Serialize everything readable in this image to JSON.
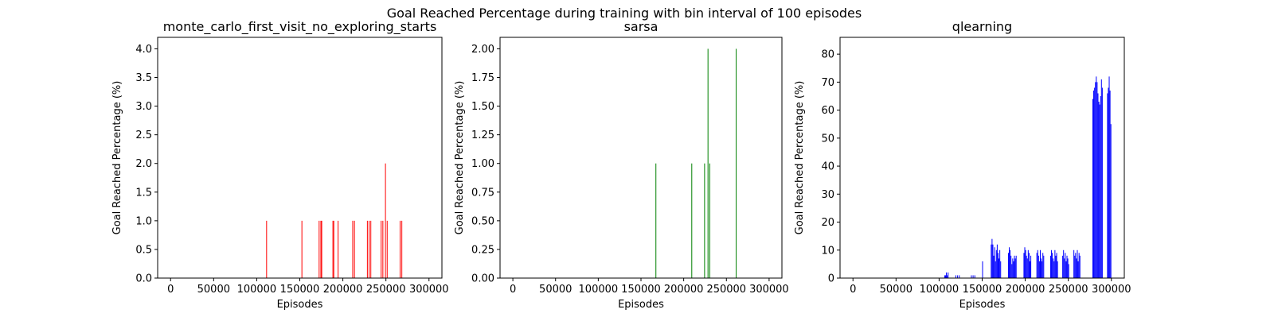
{
  "figure": {
    "suptitle": "Goal Reached Percentage during training with bin interval of 100 episodes"
  },
  "chart_data": [
    {
      "type": "bar",
      "title": "monte_carlo_first_visit_no_exploring_starts",
      "xlabel": "Episodes",
      "ylabel": "Goal Reached Percentage (%)",
      "color": "#ff0000",
      "xlim": [
        -15000,
        315000
      ],
      "ylim": [
        0,
        4.2
      ],
      "xticks": [
        0,
        50000,
        100000,
        150000,
        200000,
        250000,
        300000
      ],
      "yticks": [
        0.0,
        0.5,
        1.0,
        1.5,
        2.0,
        2.5,
        3.0,
        3.5,
        4.0
      ],
      "ytick_labels": [
        "0.0",
        "0.5",
        "1.0",
        "1.5",
        "2.0",
        "2.5",
        "3.0",
        "3.5",
        "4.0"
      ],
      "bar_width": 100,
      "x": [
        111000,
        152000,
        172000,
        174000,
        175000,
        188000,
        189000,
        194000,
        211000,
        213000,
        228000,
        230000,
        232000,
        244000,
        246000,
        249000,
        251000,
        266000,
        268000
      ],
      "values": [
        1,
        1,
        1,
        1,
        1,
        1,
        1,
        1,
        1,
        1,
        1,
        1,
        1,
        1,
        1,
        2,
        1,
        1,
        1
      ]
    },
    {
      "type": "bar",
      "title": "sarsa",
      "xlabel": "Episodes",
      "ylabel": "Goal Reached Percentage (%)",
      "color": "#008000",
      "xlim": [
        -15000,
        315000
      ],
      "ylim": [
        0,
        2.1
      ],
      "xticks": [
        0,
        50000,
        100000,
        150000,
        200000,
        250000,
        300000
      ],
      "yticks": [
        0.0,
        0.25,
        0.5,
        0.75,
        1.0,
        1.25,
        1.5,
        1.75,
        2.0
      ],
      "ytick_labels": [
        "0.00",
        "0.25",
        "0.50",
        "0.75",
        "1.00",
        "1.25",
        "1.50",
        "1.75",
        "2.00"
      ],
      "bar_width": 100,
      "x": [
        167000,
        209000,
        224000,
        228000,
        230000,
        261000
      ],
      "values": [
        1,
        1,
        1,
        2,
        1,
        2
      ]
    },
    {
      "type": "bar",
      "title": "qlearning",
      "xlabel": "Episodes",
      "ylabel": "Goal Reached Percentage (%)",
      "color": "#0000ff",
      "xlim": [
        -15000,
        315000
      ],
      "ylim": [
        0,
        86
      ],
      "xticks": [
        0,
        50000,
        100000,
        150000,
        200000,
        250000,
        300000
      ],
      "yticks": [
        0,
        10,
        20,
        30,
        40,
        50,
        60,
        70,
        80
      ],
      "ytick_labels": [
        "0",
        "10",
        "20",
        "30",
        "40",
        "50",
        "60",
        "70",
        "80"
      ],
      "bar_width": 100,
      "x": [
        106000,
        107000,
        108000,
        109000,
        110000,
        119000,
        121000,
        123000,
        137000,
        139000,
        141000,
        150000,
        160000,
        161000,
        162000,
        163000,
        164000,
        165000,
        166000,
        167000,
        168000,
        169000,
        170000,
        171000,
        180000,
        181000,
        182000,
        183000,
        184000,
        185000,
        186000,
        187000,
        188000,
        189000,
        198000,
        199000,
        200000,
        201000,
        202000,
        203000,
        204000,
        205000,
        206000,
        213000,
        214000,
        215000,
        216000,
        217000,
        218000,
        219000,
        220000,
        221000,
        229000,
        230000,
        231000,
        232000,
        233000,
        234000,
        235000,
        236000,
        237000,
        243000,
        244000,
        245000,
        246000,
        247000,
        248000,
        249000,
        250000,
        256000,
        257000,
        258000,
        259000,
        260000,
        261000,
        262000,
        263000,
        278000,
        279000,
        280000,
        281000,
        282000,
        283000,
        284000,
        285000,
        286000,
        287000,
        288000,
        289000,
        295000,
        296000,
        297000,
        298000,
        299000
      ],
      "values": [
        1,
        1,
        2,
        1,
        2,
        1,
        1,
        1,
        1,
        1,
        1,
        6,
        12,
        14,
        12,
        8,
        11,
        6,
        10,
        12,
        9,
        7,
        10,
        6,
        9,
        11,
        10,
        8,
        5,
        7,
        6,
        8,
        7,
        8,
        9,
        11,
        10,
        8,
        7,
        10,
        9,
        6,
        8,
        9,
        10,
        8,
        6,
        10,
        7,
        6,
        9,
        8,
        8,
        10,
        9,
        7,
        6,
        10,
        8,
        9,
        6,
        8,
        10,
        7,
        9,
        6,
        8,
        7,
        5,
        10,
        8,
        9,
        7,
        10,
        6,
        9,
        8,
        64,
        67,
        68,
        70,
        72,
        70,
        66,
        63,
        62,
        65,
        71,
        68,
        66,
        68,
        72,
        67,
        55
      ]
    }
  ]
}
